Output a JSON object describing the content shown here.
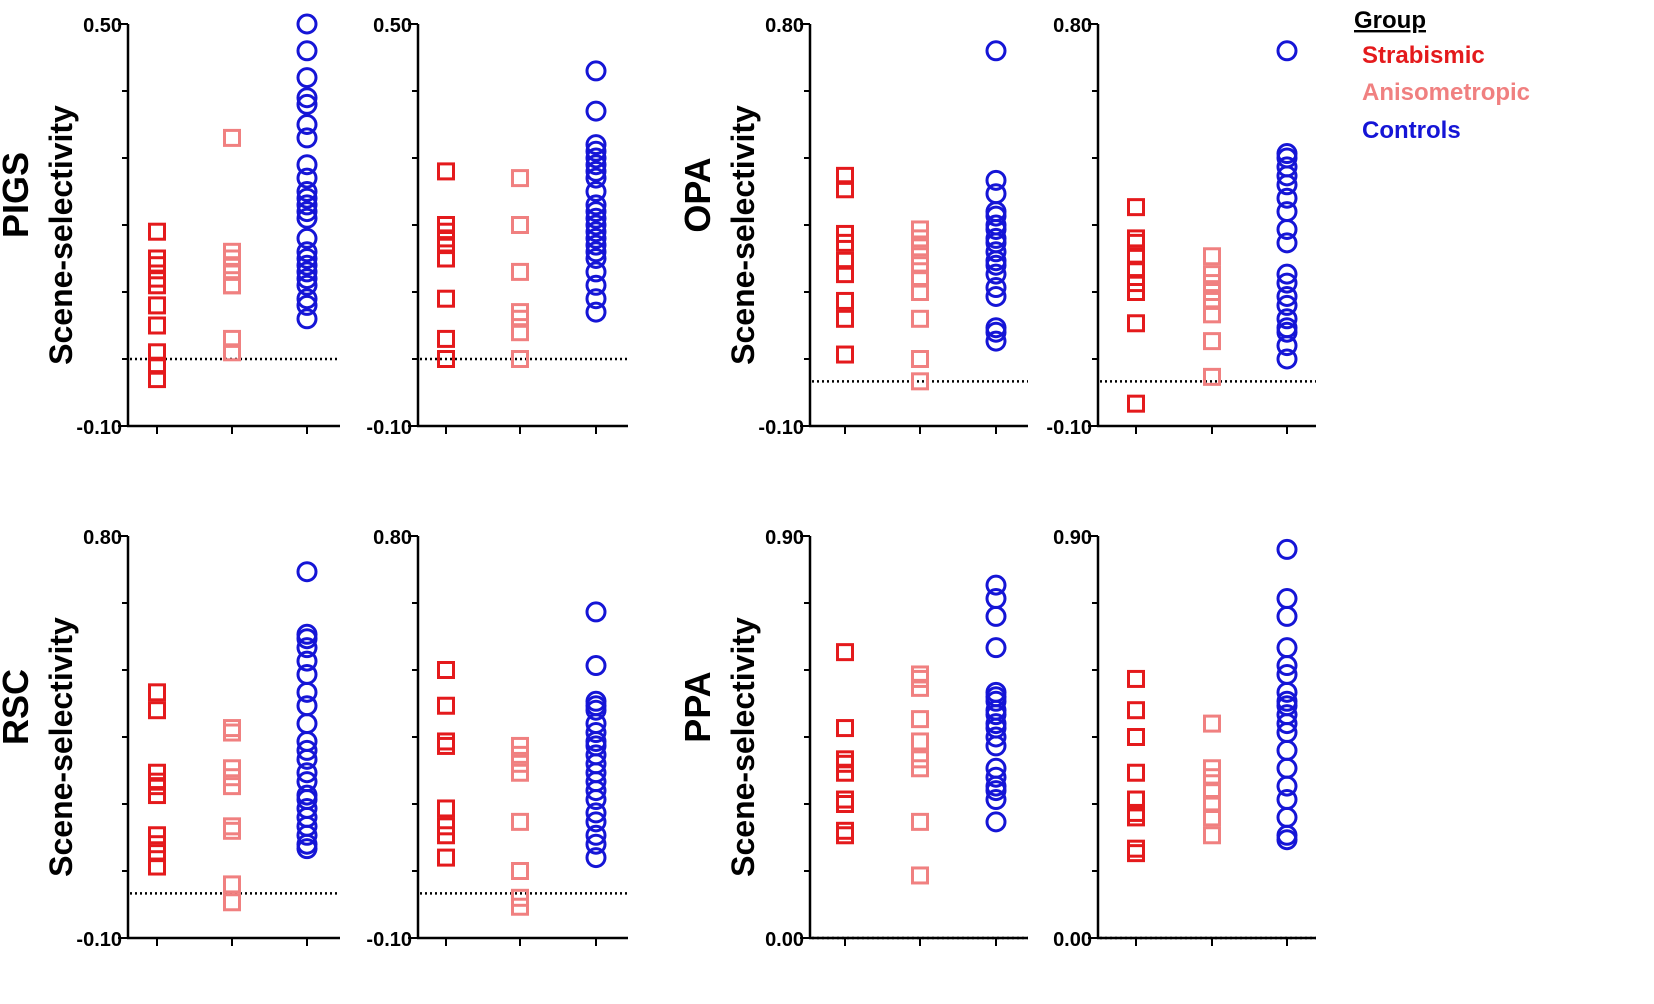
{
  "chart_data": [
    {
      "type": "scatter",
      "region": "PIGS",
      "panel": "left",
      "ylabel": "Scene-selectivity",
      "ylim": [
        -0.1,
        0.5
      ],
      "ytick_labels": [
        "0.50",
        "-0.10"
      ],
      "reference_line": 0.0,
      "series": [
        {
          "name": "Strabismic",
          "values": [
            0.19,
            0.15,
            0.14,
            0.12,
            0.11,
            0.08,
            0.05,
            0.01,
            -0.01,
            -0.03
          ]
        },
        {
          "name": "Anisometropic",
          "values": [
            0.33,
            0.16,
            0.15,
            0.14,
            0.13,
            0.11,
            0.11,
            0.03,
            0.01
          ]
        },
        {
          "name": "Controls",
          "values": [
            0.5,
            0.46,
            0.42,
            0.39,
            0.38,
            0.35,
            0.33,
            0.29,
            0.27,
            0.25,
            0.24,
            0.23,
            0.22,
            0.21,
            0.18,
            0.16,
            0.15,
            0.14,
            0.13,
            0.12,
            0.11,
            0.09,
            0.08,
            0.06
          ]
        }
      ]
    },
    {
      "type": "scatter",
      "region": "PIGS",
      "panel": "right",
      "ylabel": "",
      "ylim": [
        -0.1,
        0.5
      ],
      "ytick_labels": [
        "0.50",
        "-0.10"
      ],
      "reference_line": 0.0,
      "series": [
        {
          "name": "Strabismic",
          "values": [
            0.28,
            0.2,
            0.19,
            0.18,
            0.17,
            0.15,
            0.09,
            0.03,
            0.0
          ]
        },
        {
          "name": "Anisometropic",
          "values": [
            0.27,
            0.2,
            0.13,
            0.07,
            0.06,
            0.04,
            0.0
          ]
        },
        {
          "name": "Controls",
          "values": [
            0.43,
            0.37,
            0.32,
            0.31,
            0.3,
            0.29,
            0.28,
            0.27,
            0.25,
            0.23,
            0.22,
            0.21,
            0.2,
            0.19,
            0.18,
            0.17,
            0.16,
            0.15,
            0.13,
            0.11,
            0.09,
            0.07
          ]
        }
      ]
    },
    {
      "type": "scatter",
      "region": "OPA",
      "panel": "left",
      "ylabel": "Scene-selectivity",
      "ylim": [
        -0.1,
        0.8
      ],
      "ytick_labels": [
        "0.80",
        "-0.10"
      ],
      "reference_line": 0.0,
      "series": [
        {
          "name": "Strabismic",
          "values": [
            0.46,
            0.43,
            0.33,
            0.31,
            0.27,
            0.24,
            0.18,
            0.14,
            0.06
          ]
        },
        {
          "name": "Anisometropic",
          "values": [
            0.34,
            0.32,
            0.3,
            0.28,
            0.26,
            0.23,
            0.2,
            0.14,
            0.05,
            0.0
          ]
        },
        {
          "name": "Controls",
          "values": [
            0.74,
            0.45,
            0.42,
            0.38,
            0.37,
            0.35,
            0.34,
            0.32,
            0.31,
            0.29,
            0.27,
            0.26,
            0.24,
            0.21,
            0.19,
            0.12,
            0.11,
            0.09
          ]
        }
      ]
    },
    {
      "type": "scatter",
      "region": "OPA",
      "panel": "right",
      "ylabel": "",
      "ylim": [
        -0.1,
        0.8
      ],
      "ytick_labels": [
        "0.80",
        "-0.10"
      ],
      "reference_line": 0.0,
      "series": [
        {
          "name": "Strabismic",
          "values": [
            0.39,
            0.32,
            0.31,
            0.28,
            0.25,
            0.22,
            0.2,
            0.13,
            -0.05
          ]
        },
        {
          "name": "Anisometropic",
          "values": [
            0.28,
            0.24,
            0.22,
            0.2,
            0.18,
            0.15,
            0.09,
            0.01
          ]
        },
        {
          "name": "Controls",
          "values": [
            0.74,
            0.51,
            0.5,
            0.48,
            0.46,
            0.44,
            0.41,
            0.38,
            0.34,
            0.31,
            0.24,
            0.22,
            0.19,
            0.17,
            0.14,
            0.12,
            0.11,
            0.08,
            0.05
          ]
        }
      ]
    },
    {
      "type": "scatter",
      "region": "RSC",
      "panel": "left",
      "ylabel": "Scene-selectivity",
      "ylim": [
        -0.1,
        0.8
      ],
      "ytick_labels": [
        "0.80",
        "-0.10"
      ],
      "reference_line": 0.0,
      "series": [
        {
          "name": "Strabismic",
          "values": [
            0.45,
            0.41,
            0.27,
            0.25,
            0.24,
            0.22,
            0.13,
            0.11,
            0.09,
            0.06
          ]
        },
        {
          "name": "Anisometropic",
          "values": [
            0.37,
            0.36,
            0.28,
            0.26,
            0.24,
            0.15,
            0.14,
            0.02,
            -0.02
          ]
        },
        {
          "name": "Controls",
          "values": [
            0.72,
            0.58,
            0.57,
            0.55,
            0.52,
            0.49,
            0.45,
            0.42,
            0.38,
            0.34,
            0.32,
            0.3,
            0.27,
            0.25,
            0.22,
            0.21,
            0.19,
            0.17,
            0.15,
            0.13,
            0.11,
            0.1
          ]
        }
      ]
    },
    {
      "type": "scatter",
      "region": "RSC",
      "panel": "right",
      "ylabel": "",
      "ylim": [
        -0.1,
        0.8
      ],
      "ytick_labels": [
        "0.80",
        "-0.10"
      ],
      "reference_line": 0.0,
      "series": [
        {
          "name": "Strabismic",
          "values": [
            0.5,
            0.42,
            0.34,
            0.33,
            0.19,
            0.15,
            0.13,
            0.08
          ]
        },
        {
          "name": "Anisometropic",
          "values": [
            0.33,
            0.31,
            0.29,
            0.27,
            0.16,
            0.05,
            -0.01,
            -0.03
          ]
        },
        {
          "name": "Controls",
          "values": [
            0.63,
            0.51,
            0.43,
            0.42,
            0.41,
            0.38,
            0.36,
            0.34,
            0.33,
            0.31,
            0.29,
            0.27,
            0.25,
            0.23,
            0.21,
            0.18,
            0.16,
            0.13,
            0.11,
            0.08
          ]
        }
      ]
    },
    {
      "type": "scatter",
      "region": "PPA",
      "panel": "left",
      "ylabel": "Scene-selectivity",
      "ylim": [
        0.0,
        0.9
      ],
      "ytick_labels": [
        "0.90",
        "0.00"
      ],
      "reference_line": 0.0,
      "series": [
        {
          "name": "Strabismic",
          "values": [
            0.64,
            0.47,
            0.4,
            0.39,
            0.37,
            0.31,
            0.3,
            0.24,
            0.23
          ]
        },
        {
          "name": "Anisometropic",
          "values": [
            0.59,
            0.58,
            0.56,
            0.49,
            0.44,
            0.4,
            0.38,
            0.26,
            0.14
          ]
        },
        {
          "name": "Controls",
          "values": [
            0.79,
            0.76,
            0.72,
            0.65,
            0.55,
            0.54,
            0.53,
            0.51,
            0.5,
            0.48,
            0.47,
            0.45,
            0.43,
            0.38,
            0.36,
            0.34,
            0.33,
            0.31,
            0.26
          ]
        }
      ]
    },
    {
      "type": "scatter",
      "region": "PPA",
      "panel": "right",
      "ylabel": "",
      "ylim": [
        0.0,
        0.9
      ],
      "ytick_labels": [
        "0.90",
        "0.00"
      ],
      "reference_line": 0.0,
      "series": [
        {
          "name": "Strabismic",
          "values": [
            0.58,
            0.51,
            0.45,
            0.37,
            0.31,
            0.28,
            0.27,
            0.2,
            0.19
          ]
        },
        {
          "name": "Anisometropic",
          "values": [
            0.48,
            0.38,
            0.36,
            0.33,
            0.3,
            0.27,
            0.23
          ]
        },
        {
          "name": "Controls",
          "values": [
            0.87,
            0.76,
            0.72,
            0.65,
            0.61,
            0.59,
            0.55,
            0.53,
            0.52,
            0.5,
            0.48,
            0.46,
            0.42,
            0.38,
            0.34,
            0.31,
            0.27,
            0.23,
            0.22
          ]
        }
      ]
    }
  ],
  "legend": {
    "title": "Group",
    "items": [
      {
        "label": "Strabismic",
        "color": "#e41a1c",
        "marker": "square"
      },
      {
        "label": "Anisometropic",
        "color": "#f08080",
        "marker": "square"
      },
      {
        "label": "Controls",
        "color": "#1515d6",
        "marker": "circle"
      }
    ]
  }
}
